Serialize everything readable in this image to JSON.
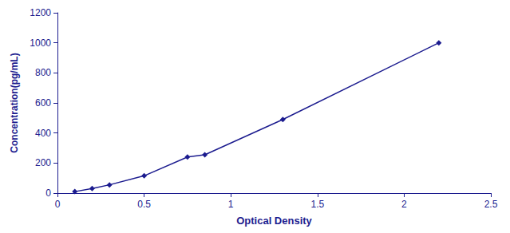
{
  "chart_data": {
    "type": "line",
    "x": [
      0.1,
      0.2,
      0.3,
      0.5,
      0.75,
      0.85,
      1.3,
      2.2
    ],
    "values": [
      10,
      30,
      55,
      115,
      240,
      255,
      490,
      1000
    ],
    "color": "#1c1c8f",
    "marker": "diamond",
    "xlabel": "Optical Density",
    "ylabel": "Concentration(pg/mL)",
    "xlim": [
      0,
      2.5
    ],
    "ylim": [
      0,
      1200
    ],
    "xticks": [
      0,
      0.5,
      1,
      1.5,
      2,
      2.5
    ],
    "yticks": [
      0,
      200,
      400,
      600,
      800,
      1000,
      1200
    ],
    "grid": false
  }
}
